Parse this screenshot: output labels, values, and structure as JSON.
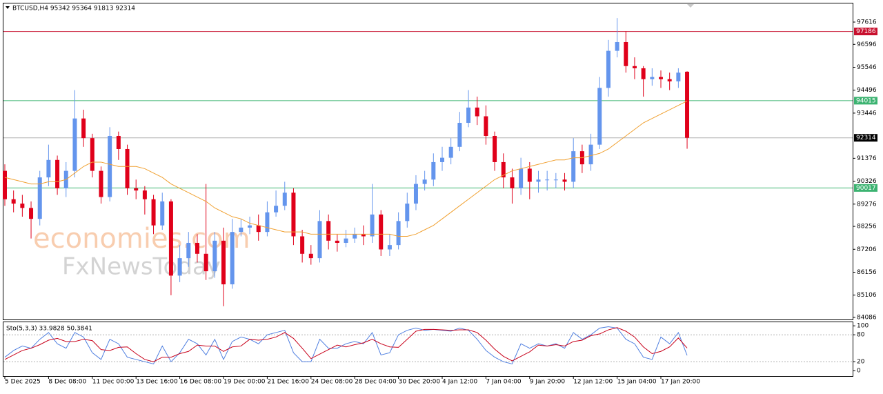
{
  "chart_data": [
    {
      "type": "candlestick",
      "title": "BTCUSD,H4  95342 95364 91813 92314",
      "watermark": [
        "economies.com",
        "FxNewsToday"
      ],
      "up_color": "#6495ed",
      "down_color": "#e0001a",
      "open": [
        90800,
        89500,
        89300,
        89100,
        88600,
        90500,
        91300,
        90000,
        90800,
        93200,
        92300,
        90800,
        89600,
        92400,
        91800,
        90000,
        89900,
        89500,
        88300,
        89400,
        86000,
        86800,
        87500,
        87000,
        86200,
        87600,
        85600,
        88000,
        88200,
        88300,
        88000,
        88900,
        89200,
        89800,
        87800,
        87000,
        86800,
        88500,
        87600,
        87500,
        87700,
        87900,
        87800,
        88800,
        87200,
        87400,
        88500,
        89300,
        90200,
        90400,
        91200,
        91400,
        91900,
        93000,
        93700,
        93300,
        92400,
        91200,
        90500,
        90000,
        90900,
        90300,
        90400,
        90400,
        90400,
        90300,
        91700,
        91100,
        92000,
        94600,
        96300,
        96700,
        95600,
        95500,
        95000,
        95100,
        95000,
        94900,
        95342
      ],
      "high": [
        91100,
        89900,
        89700,
        89400,
        90800,
        92000,
        91500,
        91200,
        94500,
        93600,
        92500,
        91000,
        92800,
        92600,
        92000,
        90400,
        90100,
        89700,
        89800,
        89500,
        87400,
        88000,
        87900,
        90200,
        88000,
        88200,
        88600,
        88600,
        88700,
        88800,
        89400,
        89900,
        90300,
        90000,
        88100,
        87400,
        89000,
        88800,
        87900,
        88100,
        88200,
        88300,
        90200,
        89000,
        87900,
        88900,
        89800,
        90600,
        90800,
        91600,
        91900,
        92300,
        93500,
        94500,
        94200,
        93800,
        92600,
        91600,
        90900,
        91400,
        91200,
        90800,
        90800,
        90700,
        90700,
        92300,
        92000,
        92500,
        95100,
        96800,
        97800,
        97200,
        96000,
        95600,
        95500,
        95400,
        95300,
        95500,
        95364
      ],
      "low": [
        89200,
        88900,
        88700,
        87700,
        88300,
        90100,
        89700,
        89600,
        90500,
        91900,
        90500,
        89300,
        89400,
        91300,
        89700,
        89500,
        88800,
        87900,
        88100,
        85100,
        85700,
        86400,
        86600,
        85800,
        85900,
        84600,
        85400,
        87800,
        87900,
        87600,
        87800,
        88700,
        89000,
        87400,
        86600,
        86500,
        86600,
        87200,
        87100,
        87300,
        87500,
        87400,
        87500,
        86900,
        86900,
        87200,
        88200,
        89000,
        89900,
        90100,
        90800,
        91100,
        91700,
        92800,
        92900,
        92000,
        90800,
        90000,
        89300,
        89700,
        89500,
        89800,
        89900,
        90000,
        89900,
        90000,
        90700,
        90800,
        91800,
        94200,
        96000,
        95300,
        95000,
        94200,
        94700,
        94600,
        94500,
        94600,
        91813
      ],
      "close": [
        89500,
        89300,
        89100,
        88600,
        90500,
        91300,
        90000,
        90800,
        93200,
        92300,
        90800,
        89600,
        92400,
        91800,
        90000,
        89900,
        89500,
        88300,
        89400,
        86000,
        86800,
        87500,
        87000,
        86200,
        87600,
        85600,
        88000,
        88200,
        88300,
        88000,
        88900,
        89200,
        89800,
        87800,
        87000,
        86800,
        88500,
        87600,
        87500,
        87700,
        87900,
        87800,
        88800,
        87200,
        87400,
        88500,
        89300,
        90200,
        90400,
        91200,
        91400,
        91900,
        93000,
        93700,
        93300,
        92400,
        91200,
        90500,
        90000,
        90900,
        90300,
        90400,
        90400,
        90400,
        90300,
        91700,
        91100,
        92000,
        94600,
        96300,
        96700,
        95600,
        95500,
        95000,
        95100,
        95000,
        94900,
        95300,
        92314
      ],
      "ma": {
        "color": "#f0a030",
        "values": [
          90500,
          90400,
          90300,
          90200,
          90200,
          90300,
          90300,
          90400,
          90700,
          91000,
          91200,
          91200,
          91100,
          91000,
          91000,
          91000,
          90900,
          90700,
          90500,
          90200,
          90000,
          89800,
          89600,
          89400,
          89100,
          88900,
          88700,
          88600,
          88400,
          88300,
          88200,
          88100,
          88000,
          88000,
          88000,
          87900,
          87900,
          87900,
          87900,
          87900,
          87900,
          87900,
          87900,
          87900,
          87900,
          87800,
          87800,
          87900,
          88100,
          88300,
          88600,
          88900,
          89200,
          89500,
          89800,
          90100,
          90400,
          90600,
          90800,
          90900,
          91000,
          91100,
          91200,
          91300,
          91300,
          91400,
          91400,
          91500,
          91600,
          91800,
          92100,
          92400,
          92700,
          93000,
          93200,
          93400,
          93600,
          93800,
          94000
        ]
      },
      "levels": [
        {
          "value": 97186,
          "color": "#c8102e"
        },
        {
          "value": 94015,
          "color": "#3cb371"
        },
        {
          "value": 92314,
          "color": "#b0b0b0",
          "label_color": "#000000"
        },
        {
          "value": 90017,
          "color": "#3cb371"
        }
      ],
      "ylim": [
        83990,
        98470
      ],
      "yticks": [
        97616,
        96596,
        95546,
        94496,
        93446,
        91376,
        90326,
        89276,
        88256,
        87206,
        86156,
        85106,
        84086
      ],
      "xticks": [
        {
          "value": 0,
          "label": "5 Dec 2025"
        },
        {
          "value": 5,
          "label": "8 Dec 08:00"
        },
        {
          "value": 10,
          "label": "11 Dec 00:00"
        },
        {
          "value": 15,
          "label": "13 Dec 16:00"
        },
        {
          "value": 20,
          "label": "16 Dec 08:00"
        },
        {
          "value": 25,
          "label": "19 Dec 00:00"
        },
        {
          "value": 30,
          "label": "21 Dec 16:00"
        },
        {
          "value": 35,
          "label": "24 Dec 08:00"
        },
        {
          "value": 40,
          "label": "28 Dec 04:00"
        },
        {
          "value": 45,
          "label": "30 Dec 20:00"
        },
        {
          "value": 50,
          "label": "4 Jan 12:00"
        },
        {
          "value": 55,
          "label": "7 Jan 04:00"
        },
        {
          "value": 60,
          "label": "9 Jan 20:00"
        },
        {
          "value": 65,
          "label": "12 Jan 12:00"
        },
        {
          "value": 70,
          "label": "15 Jan 04:00"
        },
        {
          "value": 75,
          "label": "17 Jan 20:00"
        }
      ]
    },
    {
      "type": "line",
      "title": "Sto(5,3,3) 33.9828 50.3841",
      "series": [
        {
          "color": "#4f7fe0",
          "values": [
            30,
            45,
            55,
            50,
            70,
            85,
            60,
            50,
            85,
            75,
            40,
            25,
            70,
            60,
            30,
            25,
            20,
            15,
            55,
            20,
            40,
            70,
            60,
            35,
            70,
            25,
            65,
            75,
            70,
            60,
            80,
            85,
            90,
            40,
            20,
            20,
            70,
            50,
            50,
            60,
            65,
            60,
            85,
            35,
            40,
            80,
            90,
            95,
            90,
            92,
            90,
            88,
            95,
            90,
            70,
            45,
            30,
            20,
            15,
            60,
            50,
            60,
            55,
            60,
            50,
            85,
            70,
            80,
            95,
            98,
            95,
            70,
            60,
            30,
            25,
            75,
            60,
            85,
            33.9828
          ]
        },
        {
          "color": "#c8001a",
          "values": [
            25,
            35,
            45,
            50,
            58,
            68,
            72,
            65,
            65,
            70,
            67,
            47,
            45,
            52,
            53,
            38,
            25,
            20,
            30,
            30,
            38,
            43,
            57,
            55,
            55,
            43,
            53,
            55,
            70,
            68,
            70,
            75,
            85,
            72,
            50,
            27,
            37,
            47,
            57,
            53,
            58,
            62,
            70,
            60,
            53,
            52,
            70,
            88,
            92,
            92,
            91,
            90,
            91,
            91,
            85,
            68,
            48,
            32,
            22,
            32,
            42,
            57,
            55,
            58,
            55,
            65,
            68,
            78,
            82,
            91,
            96,
            88,
            75,
            53,
            38,
            43,
            53,
            73,
            50.3841
          ]
        }
      ],
      "ylim": [
        -12,
        108
      ],
      "yticks": [
        100,
        80,
        20,
        0
      ],
      "grid": [
        80,
        20
      ]
    }
  ]
}
